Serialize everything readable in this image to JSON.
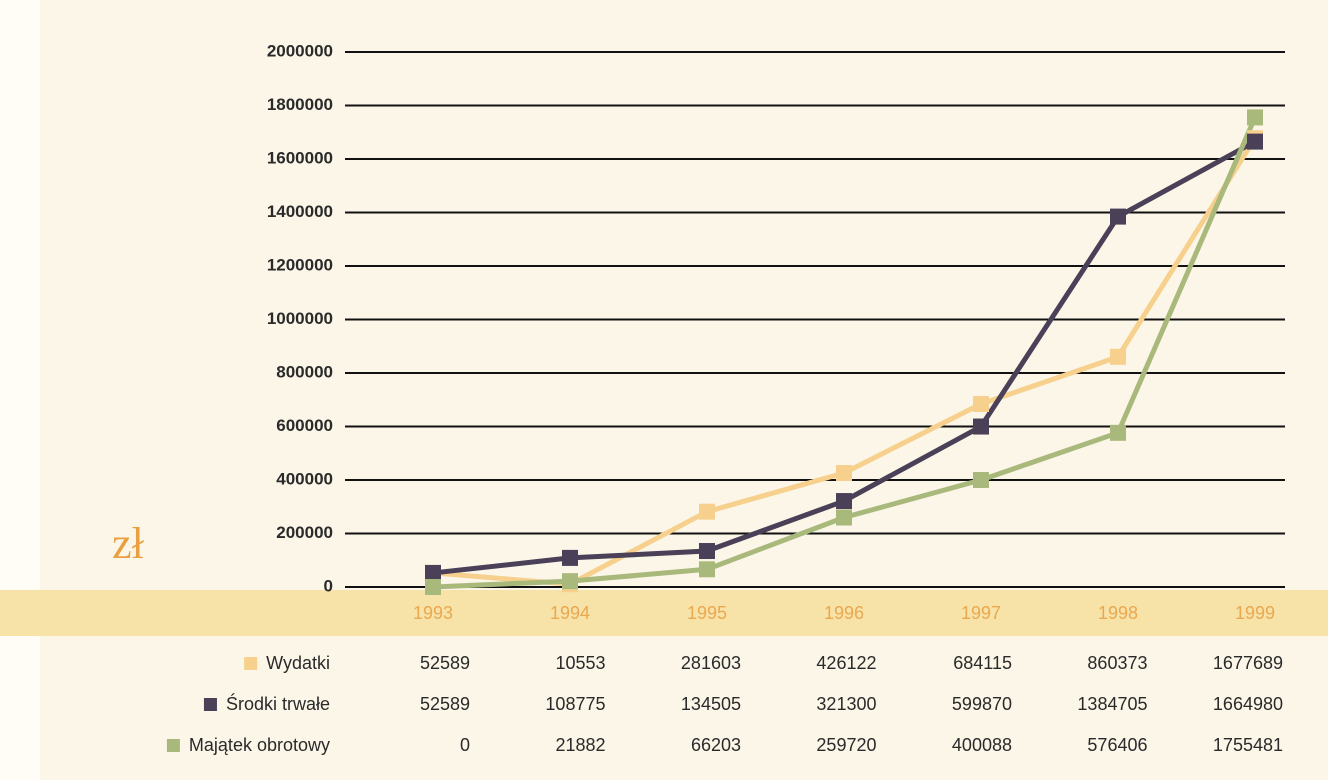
{
  "chart_data": {
    "type": "line",
    "y_label": "zł",
    "categories": [
      "1993",
      "1994",
      "1995",
      "1996",
      "1997",
      "1998",
      "1999"
    ],
    "series": [
      {
        "name": "Wydatki",
        "color": "#f6d08c",
        "values": [
          52589,
          10553,
          281603,
          426122,
          684115,
          860373,
          1677689
        ]
      },
      {
        "name": "Środki trwałe",
        "color": "#4a4058",
        "values": [
          52589,
          108775,
          134505,
          321300,
          599870,
          1384705,
          1664980
        ]
      },
      {
        "name": "Majątek obrotowy",
        "color": "#a9b97c",
        "values": [
          0,
          21882,
          66203,
          259720,
          400088,
          576406,
          1755481
        ]
      }
    ],
    "ylim": [
      0,
      2000000
    ],
    "yticks": [
      0,
      200000,
      400000,
      600000,
      800000,
      1000000,
      1200000,
      1400000,
      1600000,
      1800000,
      2000000
    ],
    "grid": true
  }
}
